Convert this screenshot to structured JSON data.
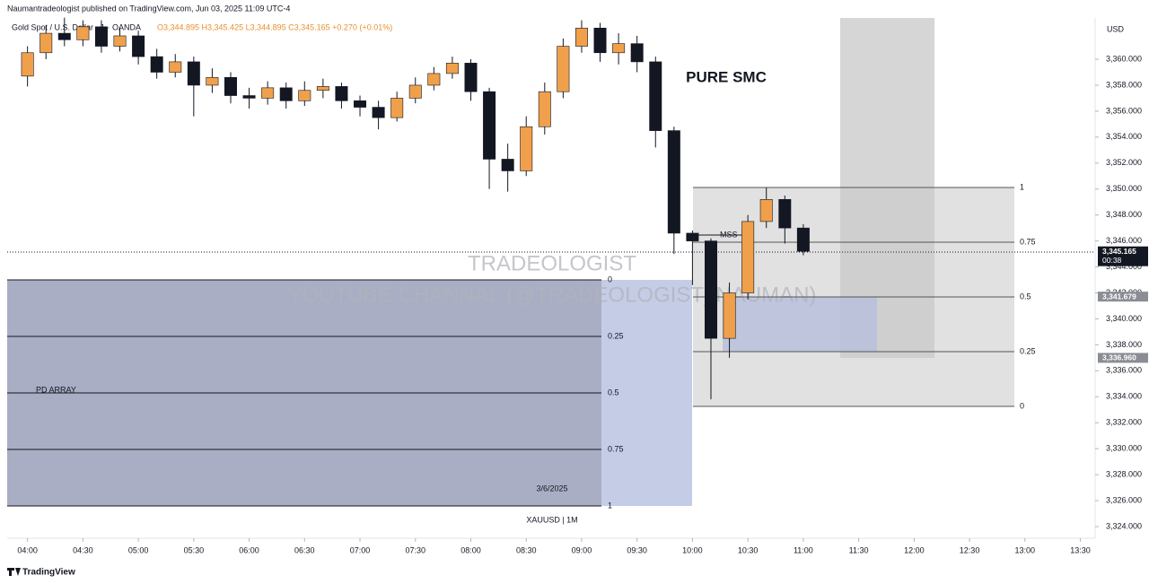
{
  "chart_data": {
    "type": "candlestick",
    "header": "Naumantradeologist published on TradingView.com, Jun 03, 2025 11:09 UTC-4",
    "symbol": "Gold Spot / U.S. Dollar · 1 · OANDA",
    "ohlc": "O3,344.895 H3,345.425 L3,344.895 C3,345.165 +0.270 (+0.01%)",
    "currency": "USD",
    "title": "PURE SMC",
    "watermark": "TRADEOLOGIST",
    "watermark_sub": "YOUTUBE CHANNAL (@TRADEOLOGIST_NAUMAN)",
    "mss": "MSS",
    "pd_array": {
      "label": "PD ARRAY",
      "date": "3/6/2025",
      "symbol": "XAUUSD | 1M",
      "levels": [
        0,
        0.25,
        0.5,
        0.75,
        1
      ]
    },
    "fib": {
      "levels": [
        1,
        0.75,
        0.5,
        0.25,
        0
      ]
    },
    "brand": "TradingView",
    "up_color": "#f0a04b",
    "down_color": "#131722",
    "x": [
      "04:00",
      "04:10",
      "04:20",
      "04:30",
      "04:40",
      "04:50",
      "05:00",
      "05:10",
      "05:20",
      "05:30",
      "05:40",
      "05:50",
      "06:00",
      "06:10",
      "06:20",
      "06:30",
      "06:40",
      "06:50",
      "07:00",
      "07:10",
      "07:20",
      "07:30",
      "07:40",
      "07:50",
      "08:00",
      "08:10",
      "08:20",
      "08:30",
      "08:40",
      "08:50",
      "09:00",
      "09:10",
      "09:20",
      "09:30",
      "09:40",
      "09:50",
      "10:00",
      "10:10",
      "10:20",
      "10:30",
      "10:40",
      "10:50",
      "11:00"
    ],
    "open": [
      3358.7,
      3360.5,
      3362.0,
      3361.5,
      3362.5,
      3361.0,
      3361.8,
      3360.2,
      3359.0,
      3359.8,
      3358.0,
      3358.6,
      3357.2,
      3357.0,
      3357.8,
      3356.8,
      3357.6,
      3357.9,
      3356.8,
      3356.3,
      3355.5,
      3357.0,
      3358.0,
      3358.9,
      3359.7,
      3357.5,
      3352.3,
      3351.4,
      3354.8,
      3357.5,
      3361.0,
      3362.4,
      3360.5,
      3361.2,
      3359.8,
      3354.5,
      3346.6,
      3346.0,
      3338.5,
      3342.0,
      3347.5,
      3349.2,
      3347.0
    ],
    "high": [
      3361.0,
      3362.6,
      3363.2,
      3363.0,
      3363.0,
      3362.4,
      3362.2,
      3360.8,
      3360.4,
      3360.2,
      3359.3,
      3359.0,
      3357.8,
      3358.3,
      3358.2,
      3358.3,
      3358.5,
      3358.2,
      3357.2,
      3356.8,
      3357.5,
      3358.6,
      3359.4,
      3360.2,
      3360.0,
      3357.8,
      3353.5,
      3355.6,
      3358.2,
      3361.6,
      3363.0,
      3362.8,
      3362.0,
      3361.8,
      3360.2,
      3354.8,
      3346.8,
      3346.2,
      3342.8,
      3348.0,
      3350.1,
      3349.5,
      3347.3
    ],
    "low": [
      3357.9,
      3360.0,
      3361.0,
      3361.0,
      3360.5,
      3360.6,
      3359.6,
      3358.5,
      3358.6,
      3355.6,
      3357.4,
      3356.6,
      3356.2,
      3356.5,
      3356.2,
      3356.4,
      3357.0,
      3356.2,
      3355.6,
      3354.6,
      3355.2,
      3356.6,
      3357.6,
      3358.5,
      3356.8,
      3350.0,
      3349.8,
      3351.0,
      3354.2,
      3357.0,
      3360.5,
      3359.8,
      3359.6,
      3359.0,
      3353.2,
      3345.0,
      3342.6,
      3333.8,
      3337.0,
      3341.5,
      3347.0,
      3345.8,
      3344.9
    ],
    "close": [
      3360.5,
      3362.0,
      3361.5,
      3362.5,
      3361.0,
      3361.8,
      3360.2,
      3359.0,
      3359.8,
      3358.0,
      3358.6,
      3357.2,
      3357.0,
      3357.8,
      3356.8,
      3357.6,
      3357.9,
      3356.8,
      3356.3,
      3355.5,
      3357.0,
      3358.0,
      3358.9,
      3359.7,
      3357.5,
      3352.3,
      3351.4,
      3354.8,
      3357.5,
      3361.0,
      3362.4,
      3360.5,
      3361.2,
      3359.8,
      3354.5,
      3346.6,
      3346.0,
      3338.5,
      3342.0,
      3347.5,
      3349.2,
      3347.0,
      3345.2
    ],
    "xlim": [
      "03:49",
      "13:38"
    ],
    "xticks": [
      "04:00",
      "04:30",
      "05:00",
      "05:30",
      "06:00",
      "06:30",
      "07:00",
      "07:30",
      "08:00",
      "08:30",
      "09:00",
      "09:30",
      "10:00",
      "10:30",
      "11:00",
      "11:30",
      "12:00",
      "12:30",
      "13:00",
      "13:30"
    ],
    "ylim": [
      3323.1,
      3363.18
    ],
    "yticks": [
      {
        "value": 3324,
        "label": "3,324.000"
      },
      {
        "value": 3326,
        "label": "3,326.000"
      },
      {
        "value": 3328,
        "label": "3,328.000"
      },
      {
        "value": 3330,
        "label": "3,330.000"
      },
      {
        "value": 3332,
        "label": "3,332.000"
      },
      {
        "value": 3334,
        "label": "3,334.000"
      },
      {
        "value": 3336,
        "label": "3,336.000"
      },
      {
        "value": 3338,
        "label": "3,338.000"
      },
      {
        "value": 3340,
        "label": "3,340.000"
      },
      {
        "value": 3342,
        "label": "3,342.000"
      },
      {
        "value": 3344,
        "label": "3,344.000"
      },
      {
        "value": 3346,
        "label": "3,346.000"
      },
      {
        "value": 3348,
        "label": "3,348.000"
      },
      {
        "value": 3350,
        "label": "3,350.000"
      },
      {
        "value": 3352,
        "label": "3,352.000"
      },
      {
        "value": 3354,
        "label": "3,354.000"
      },
      {
        "value": 3356,
        "label": "3,356.000"
      },
      {
        "value": 3358,
        "label": "3,358.000"
      },
      {
        "value": 3360,
        "label": "3,360.000"
      }
    ],
    "price_marks": [
      {
        "value": 3345.165,
        "label": "3,345.165",
        "sub": "00:38",
        "color": "#131722"
      },
      {
        "value": 3341.679,
        "label": "3,341.679",
        "color": "#8a8d94"
      },
      {
        "value": 3336.96,
        "label": "3,336.960",
        "color": "#8a8d94"
      }
    ]
  }
}
